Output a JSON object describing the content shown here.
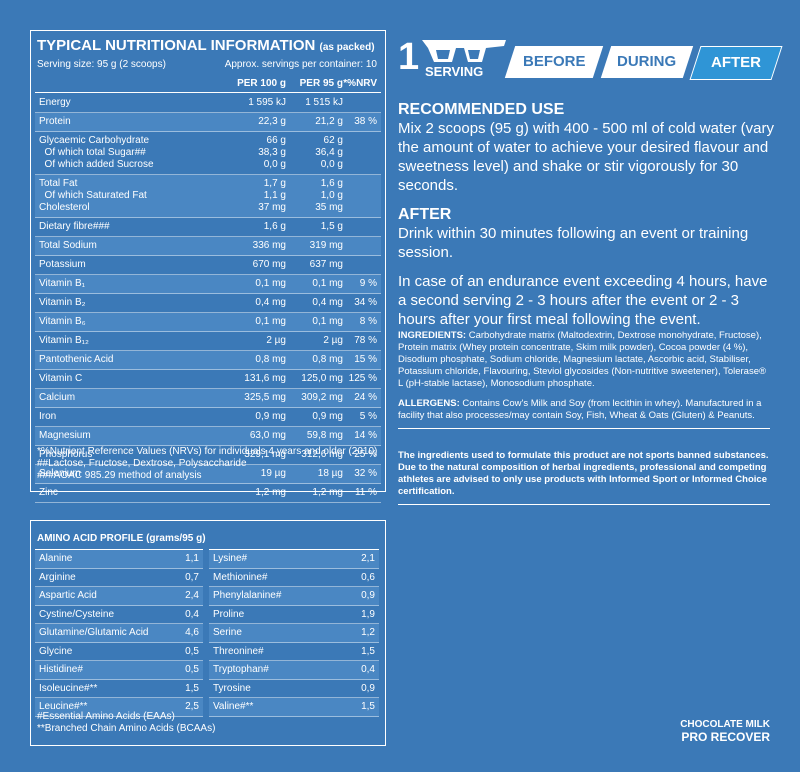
{
  "nutrition": {
    "title": "TYPICAL NUTRITIONAL INFORMATION",
    "title_note": "(as packed)",
    "serving_size": "Serving size: 95 g (2 scoops)",
    "servings_per_container": "Approx. servings per container: 10",
    "columns": [
      "PER 100 g",
      "PER 95 g",
      "*%NRV"
    ],
    "rows": [
      [
        [
          "Energy",
          "1 595 kJ",
          "1 515 kJ",
          null
        ]
      ],
      [
        [
          "Protein",
          "22,3 g",
          "21,2 g",
          "38 %"
        ]
      ],
      [
        [
          "Glycaemic Carbohydrate",
          "66 g",
          "62 g",
          null
        ],
        [
          "  Of which total Sugar##",
          "38,3 g",
          "36,4 g",
          null
        ],
        [
          "  Of which added Sucrose",
          "0,0 g",
          "0,0 g",
          null
        ]
      ],
      [
        [
          "Total Fat",
          "1,7 g",
          "1,6 g",
          null
        ],
        [
          "  Of which Saturated Fat",
          "1,1 g",
          "1,0 g",
          null
        ],
        [
          "Cholesterol",
          "37 mg",
          "35 mg",
          null
        ]
      ],
      [
        [
          "Dietary fibre###",
          "1,6 g",
          "1,5 g",
          null
        ]
      ],
      [
        [
          "Total Sodium",
          "336 mg",
          "319 mg",
          null
        ]
      ],
      [
        [
          "Potassium",
          "670 mg",
          "637 mg",
          null
        ]
      ],
      [
        [
          "Vitamin B₁",
          "0,1 mg",
          "0,1 mg",
          "9 %"
        ]
      ],
      [
        [
          "Vitamin B₂",
          "0,4 mg",
          "0,4 mg",
          "34 %"
        ]
      ],
      [
        [
          "Vitamin B₆",
          "0,1 mg",
          "0,1 mg",
          "8 %"
        ]
      ],
      [
        [
          "Vitamin B₁₂",
          "2 µg",
          "2 µg",
          "78 %"
        ]
      ],
      [
        [
          "Pantothenic Acid",
          "0,8 mg",
          "0,8 mg",
          "15 %"
        ]
      ],
      [
        [
          "Vitamin C",
          "131,6 mg",
          "125,0 mg",
          "125 %"
        ]
      ],
      [
        [
          "Calcium",
          "325,5 mg",
          "309,2 mg",
          "24 %"
        ]
      ],
      [
        [
          "Iron",
          "0,9 mg",
          "0,9 mg",
          "5 %"
        ]
      ],
      [
        [
          "Magnesium",
          "63,0 mg",
          "59,8 mg",
          "14 %"
        ]
      ],
      [
        [
          "Phosphorus",
          "329,1 mg",
          "312,6 mg",
          "25 %"
        ]
      ],
      [
        [
          "Selenium",
          "19 µg",
          "18 µg",
          "32 %"
        ]
      ],
      [
        [
          "Zinc",
          "1,2 mg",
          "1,2 mg",
          "11 %"
        ]
      ]
    ],
    "footnotes": [
      "*%Nutrient Reference Values (NRVs) for individuals 4 years and older (2010)",
      "##Lactose, Fructose, Dextrose, Polysaccharide",
      "###AOAC 985.29 method of analysis"
    ]
  },
  "amino": {
    "title": "AMINO ACID PROFILE (grams/95 g)",
    "left": [
      [
        "Alanine",
        "1,1"
      ],
      [
        "Arginine",
        "0,7"
      ],
      [
        "Aspartic Acid",
        "2,4"
      ],
      [
        "Cystine/Cysteine",
        "0,4"
      ],
      [
        "Glutamine/Glutamic Acid",
        "4,6"
      ],
      [
        "Glycine",
        "0,5"
      ],
      [
        "Histidine#",
        "0,5"
      ],
      [
        "Isoleucine#**",
        "1,5"
      ],
      [
        "Leucine#**",
        "2,5"
      ]
    ],
    "right": [
      [
        "Lysine#",
        "2,1"
      ],
      [
        "Methionine#",
        "0,6"
      ],
      [
        "Phenylalanine#",
        "0,9"
      ],
      [
        "Proline",
        "1,9"
      ],
      [
        "Serine",
        "1,2"
      ],
      [
        "Threonine#",
        "1,5"
      ],
      [
        "Tryptophan#",
        "0,4"
      ],
      [
        "Tyrosine",
        "0,9"
      ],
      [
        "Valine#**",
        "1,5"
      ]
    ],
    "footnotes": [
      "#Essential Amino Acids (EAAs)",
      "**Branched Chain Amino Acids (BCAAs)"
    ]
  },
  "serving": {
    "count": "1",
    "label": "SERVING",
    "tabs": [
      "BEFORE",
      "DURING",
      "AFTER"
    ],
    "active_tab": 2
  },
  "usage": {
    "heading": "RECOMMENDED USE",
    "text": "Mix 2 scoops (95 g) with 400 - 500 ml of cold water (vary the amount of water to achieve your desired flavour and sweetness level) and shake or stir vigorously for 30 seconds.",
    "after_heading": "AFTER",
    "after_text": [
      "Drink within 30 minutes following an event or training session.",
      "In case of an endurance event exceeding 4 hours, have a second serving 2 - 3 hours after the event or 2 - 3 hours after your first meal following the event."
    ]
  },
  "ingredients": {
    "label": "INGREDIENTS:",
    "text": "Carbohydrate matrix (Maltodextrin, Dextrose monohydrate, Fructose), Protein matrix (Whey protein concentrate, Skim milk powder), Cocoa powder (4 %), Disodium phosphate, Sodium chloride, Magnesium lactate, Ascorbic acid, Stabiliser, Potassium chloride, Flavouring, Steviol glycosides (Non-nutritive sweetener), Tolerase® L (pH-stable lactase), Monosodium phosphate."
  },
  "allergens": {
    "label": "ALLERGENS:",
    "text": "Contains Cow's Milk and Soy (from lecithin in whey). Manufactured in a facility that also processes/may contain Soy, Fish, Wheat & Oats (Gluten) & Peanuts."
  },
  "disclaimer": "The ingredients used to formulate this product are not sports banned substances. Due to the natural composition of herbal ingredients, professional and competing athletes are advised to only use products with Informed Sport or Informed Choice certification.",
  "footer": {
    "flavour": "CHOCOLATE MILK",
    "product": "PRO RECOVER"
  }
}
